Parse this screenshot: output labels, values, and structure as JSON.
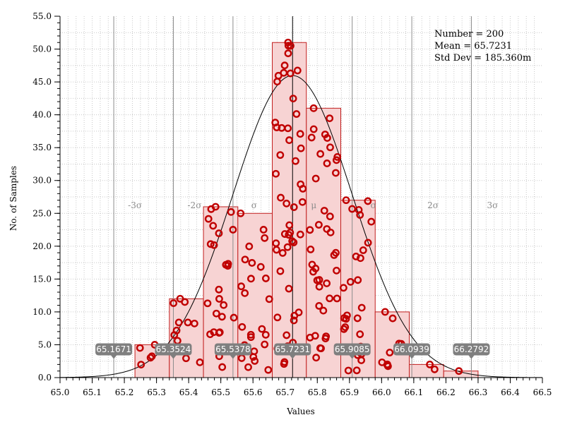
{
  "chart_data": {
    "type": "bar",
    "xlabel": "Values",
    "ylabel": "No. of Samples",
    "xlim": [
      65.0,
      66.5
    ],
    "ylim": [
      0,
      55
    ],
    "x_ticks": [
      "65.0",
      "65.1",
      "65.2",
      "65.3",
      "65.4",
      "65.5",
      "65.6",
      "65.7",
      "65.8",
      "65.9",
      "66.0",
      "66.1",
      "66.2",
      "66.3",
      "66.4",
      "66.5"
    ],
    "y_ticks": [
      "0.0",
      "5.0",
      "10.0",
      "15.0",
      "20.0",
      "25.0",
      "30.0",
      "35.0",
      "40.0",
      "45.0",
      "50.0",
      "55.0"
    ],
    "grid": true,
    "stats": {
      "number_text": "Number = 200",
      "mean_text": "Mean = 65.7231",
      "std_text": "Std Dev = 185.360m"
    },
    "colors": {
      "bar_fill": "#f7d3d3",
      "bar_stroke": "#c21f1f",
      "point": "#c00000",
      "sigma_line": "#8c8c8c",
      "mean_line": "#000000",
      "callout_bg": "#7f7f7f"
    },
    "bins": [
      {
        "start": 65.233,
        "end": 65.34,
        "count": 5
      },
      {
        "start": 65.34,
        "end": 65.446,
        "count": 12
      },
      {
        "start": 65.446,
        "end": 65.553,
        "count": 26
      },
      {
        "start": 65.553,
        "end": 65.66,
        "count": 25
      },
      {
        "start": 65.66,
        "end": 65.766,
        "count": 51
      },
      {
        "start": 65.766,
        "end": 65.873,
        "count": 41
      },
      {
        "start": 65.873,
        "end": 65.98,
        "count": 27
      },
      {
        "start": 65.98,
        "end": 66.086,
        "count": 10
      },
      {
        "start": 66.086,
        "end": 66.193,
        "count": 2
      },
      {
        "start": 66.193,
        "end": 66.3,
        "count": 1
      }
    ],
    "mean": 65.7231,
    "sigma_lines": [
      {
        "label": "-3σ",
        "value": 65.1671,
        "callout": "65.1671"
      },
      {
        "label": "-2σ",
        "value": 65.3524,
        "callout": "65.3524"
      },
      {
        "label": "σ",
        "value": 65.5378,
        "callout": "65.5378"
      },
      {
        "label": "μ",
        "value": 65.7231,
        "callout": "65.7231"
      },
      {
        "label": "σ",
        "value": 65.9085,
        "callout": "65.9085"
      },
      {
        "label": "2σ",
        "value": 66.0939,
        "callout": "66.0939"
      },
      {
        "label": "3σ",
        "value": 66.2792,
        "callout": "66.2792"
      }
    ],
    "curve": {
      "type": "normal-fit",
      "mean": 65.7231,
      "std": 0.18536,
      "scale": 21.36
    }
  }
}
